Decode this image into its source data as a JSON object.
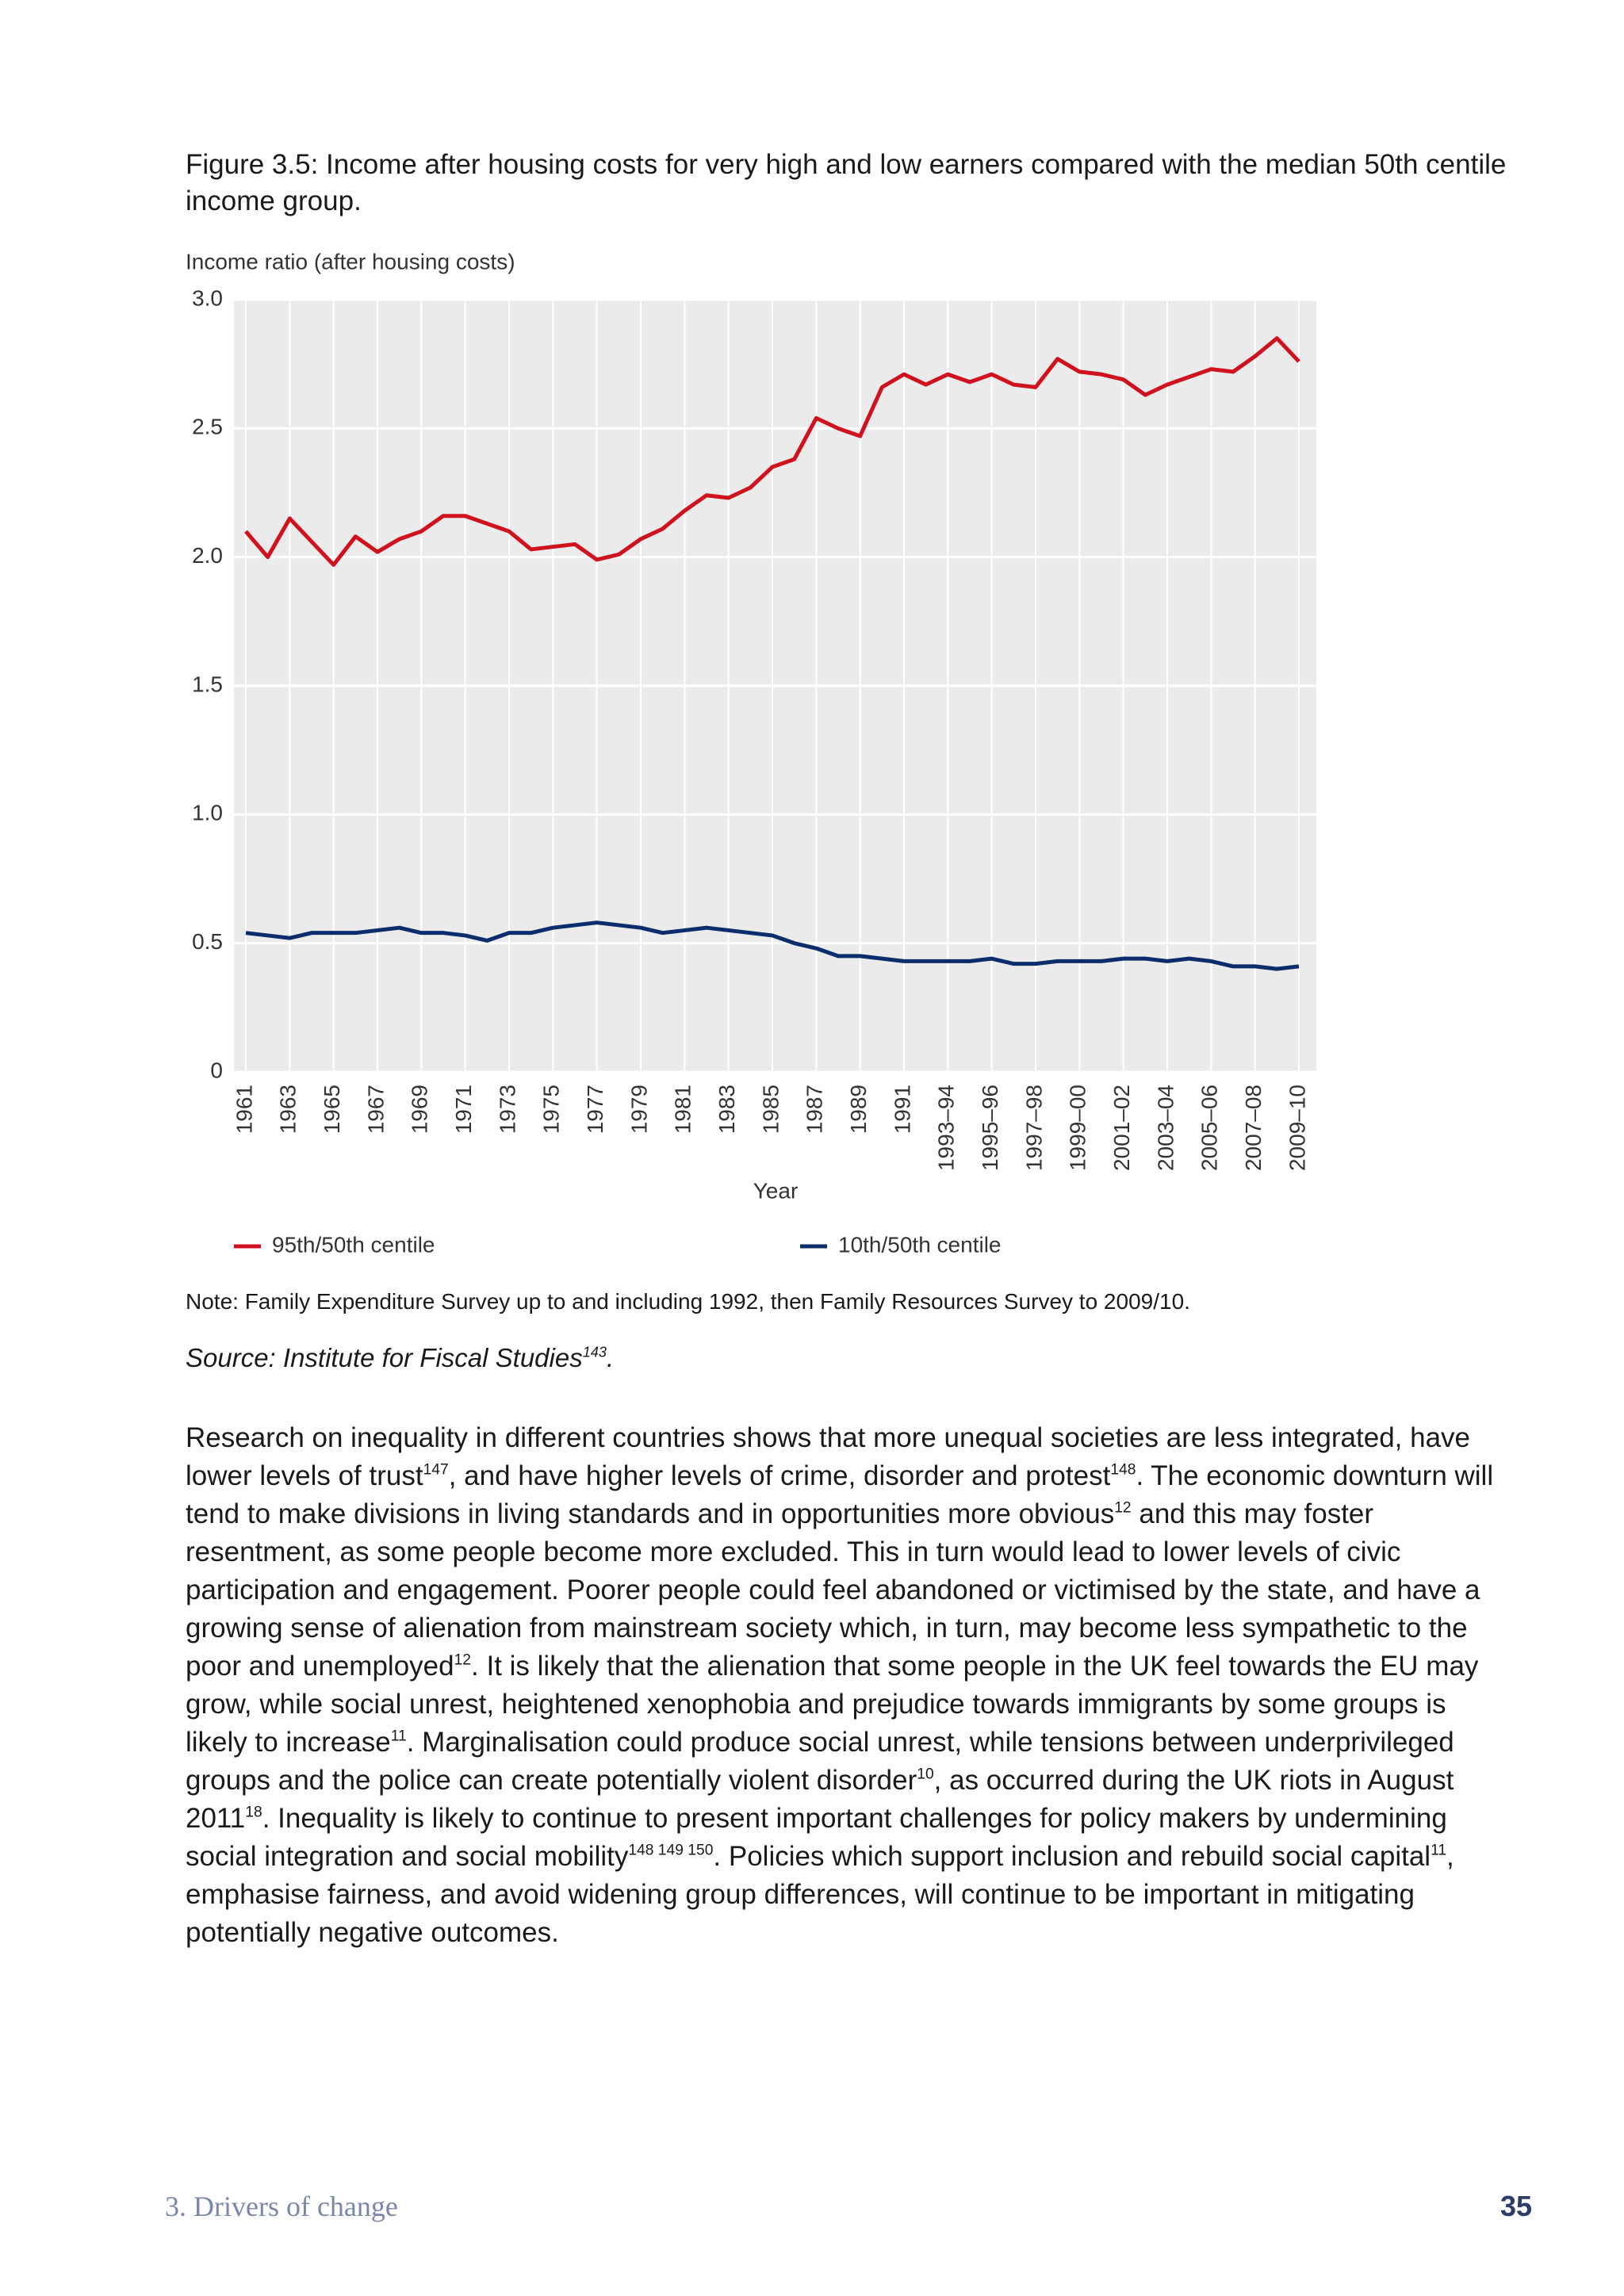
{
  "title": "Figure 3.5: Income after housing costs for very high and low earners compared with the median 50th centile income group.",
  "chart_data": {
    "type": "line",
    "y_label": "Income ratio (after housing costs)",
    "x_label": "Year",
    "categories": [
      "1961",
      null,
      "1963",
      null,
      "1965",
      null,
      "1967",
      null,
      "1969",
      null,
      "1971",
      null,
      "1973",
      null,
      "1975",
      null,
      "1977",
      null,
      "1979",
      null,
      "1981",
      null,
      "1983",
      null,
      "1985",
      null,
      "1987",
      null,
      "1989",
      null,
      "1991",
      null,
      "1993–94",
      null,
      "1995–96",
      null,
      "1997–98",
      null,
      "1999–00",
      null,
      "2001–02",
      null,
      "2003–04",
      null,
      "2005–06",
      null,
      "2007–08",
      null,
      "2009–10"
    ],
    "series": [
      {
        "name": "95th/50th centile",
        "color": "#d0121f",
        "values": [
          2.1,
          2.0,
          2.15,
          2.06,
          1.97,
          2.08,
          2.02,
          2.07,
          2.1,
          2.16,
          2.16,
          2.13,
          2.1,
          2.03,
          2.04,
          2.05,
          1.99,
          2.01,
          2.07,
          2.11,
          2.18,
          2.24,
          2.23,
          2.27,
          2.35,
          2.38,
          2.54,
          2.5,
          2.47,
          2.66,
          2.71,
          2.67,
          2.71,
          2.68,
          2.71,
          2.67,
          2.66,
          2.77,
          2.72,
          2.71,
          2.69,
          2.63,
          2.67,
          2.7,
          2.73,
          2.72,
          2.78,
          2.85,
          2.76
        ]
      },
      {
        "name": "10th/50th centile",
        "color": "#0c2d6b",
        "values": [
          0.54,
          0.53,
          0.52,
          0.54,
          0.54,
          0.54,
          0.55,
          0.56,
          0.54,
          0.54,
          0.53,
          0.51,
          0.54,
          0.54,
          0.56,
          0.57,
          0.58,
          0.57,
          0.56,
          0.54,
          0.55,
          0.56,
          0.55,
          0.54,
          0.53,
          0.5,
          0.48,
          0.45,
          0.45,
          0.44,
          0.43,
          0.43,
          0.43,
          0.43,
          0.44,
          0.42,
          0.42,
          0.43,
          0.43,
          0.43,
          0.44,
          0.44,
          0.43,
          0.44,
          0.43,
          0.41,
          0.41,
          0.4,
          0.41
        ]
      }
    ],
    "ylim": [
      0,
      3
    ],
    "yticks": [
      0,
      0.5,
      {
        "value": 1,
        "label": "1.0"
      },
      1.5,
      {
        "value": 2,
        "label": "2.0"
      },
      2.5,
      {
        "value": 3,
        "label": "3.0"
      }
    ],
    "grid": true,
    "legend": "bottom"
  },
  "note": "Note: Family Expenditure Survey up to and including 1992, then Family Resources Survey to 2009/10.",
  "source": [
    "Source: Institute for Fiscal Studies",
    "143",
    "."
  ],
  "body": [
    "Research on inequality in different countries shows that more unequal societies are less integrated, have lower levels of trust",
    "147",
    ", and have higher levels of crime, disorder and protest",
    "148",
    ". The economic downturn will tend to make divisions in living standards and in opportunities more obvious",
    "12",
    " and this may foster resentment, as some people become more excluded. This in turn would lead to lower levels of civic participation and engagement. Poorer people could feel abandoned or victimised by the state, and have a growing sense of alienation from mainstream society which, in turn, may become less sympathetic to the poor and unemployed",
    "12",
    ". It is likely that the alienation that some people in the UK feel towards the EU may grow, while social unrest, heightened xenophobia and prejudice towards immigrants by some groups is likely to increase",
    "11",
    ". Marginalisation could produce social unrest, while tensions between underprivileged groups and the police can create potentially violent disorder",
    "10",
    ", as occurred during the UK riots in August 2011",
    "18",
    ". Inequality is likely to continue to present important challenges for policy makers by undermining social integration and social mobility",
    "148 149 150",
    ". Policies which support inclusion and rebuild social capital",
    "11",
    ", emphasise fairness, and avoid widening group differences, will continue to be important in mitigating potentially negative outcomes."
  ],
  "footer": {
    "section": "3. Drivers of change",
    "page": "35"
  }
}
